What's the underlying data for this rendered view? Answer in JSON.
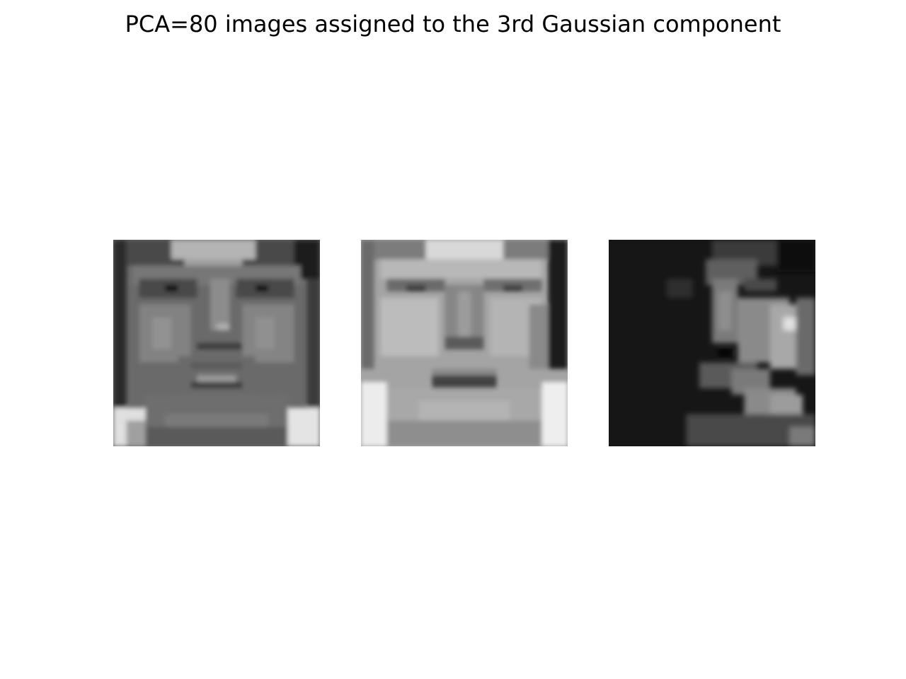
{
  "figure": {
    "title": "PCA=80 images assigned to the 3rd Gaussian component",
    "images": [
      {
        "description_icon": "grayscale-face-image"
      },
      {
        "description_icon": "grayscale-face-image"
      },
      {
        "description_icon": "grayscale-face-image"
      }
    ]
  }
}
